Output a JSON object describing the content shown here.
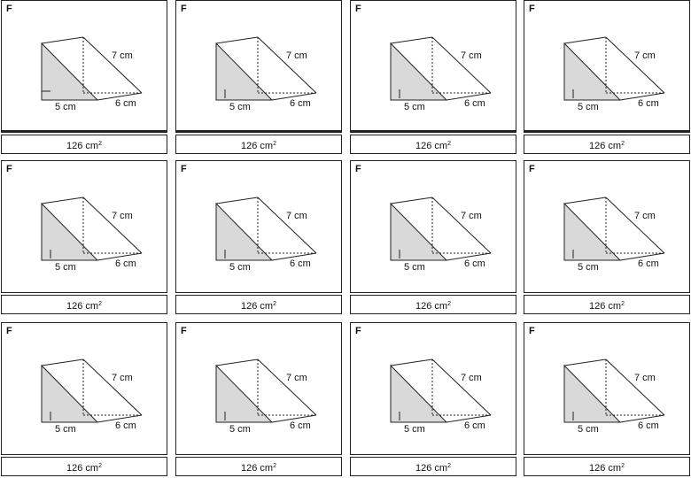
{
  "cards": [
    {
      "letter": "F",
      "slant": "7 cm",
      "base": "5 cm",
      "depth": "6 cm",
      "area_value": "126 cm",
      "area_unit_exp": "2"
    },
    {
      "letter": "F",
      "slant": "7 cm",
      "base": "5 cm",
      "depth": "6 cm",
      "area_value": "126 cm",
      "area_unit_exp": "2"
    },
    {
      "letter": "F",
      "slant": "7 cm",
      "base": "5 cm",
      "depth": "6 cm",
      "area_value": "126 cm",
      "area_unit_exp": "2"
    },
    {
      "letter": "F",
      "slant": "7 cm",
      "base": "5 cm",
      "depth": "6 cm",
      "area_value": "126 cm",
      "area_unit_exp": "2"
    },
    {
      "letter": "F",
      "slant": "7 cm",
      "base": "5 cm",
      "depth": "6 cm",
      "area_value": "126 cm",
      "area_unit_exp": "2"
    },
    {
      "letter": "F",
      "slant": "7 cm",
      "base": "5 cm",
      "depth": "6 cm",
      "area_value": "126 cm",
      "area_unit_exp": "2"
    },
    {
      "letter": "F",
      "slant": "7 cm",
      "base": "5 cm",
      "depth": "6 cm",
      "area_value": "126 cm",
      "area_unit_exp": "2"
    },
    {
      "letter": "F",
      "slant": "7 cm",
      "base": "5 cm",
      "depth": "6 cm",
      "area_value": "126 cm",
      "area_unit_exp": "2"
    },
    {
      "letter": "F",
      "slant": "7 cm",
      "base": "5 cm",
      "depth": "6 cm",
      "area_value": "126 cm",
      "area_unit_exp": "2"
    },
    {
      "letter": "F",
      "slant": "7 cm",
      "base": "5 cm",
      "depth": "6 cm",
      "area_value": "126 cm",
      "area_unit_exp": "2"
    },
    {
      "letter": "F",
      "slant": "7 cm",
      "base": "5 cm",
      "depth": "6 cm",
      "area_value": "126 cm",
      "area_unit_exp": "2"
    },
    {
      "letter": "F",
      "slant": "7 cm",
      "base": "5 cm",
      "depth": "6 cm",
      "area_value": "126 cm",
      "area_unit_exp": "2"
    }
  ],
  "colors": {
    "shade": "#d9d9d9",
    "line": "#222222"
  }
}
